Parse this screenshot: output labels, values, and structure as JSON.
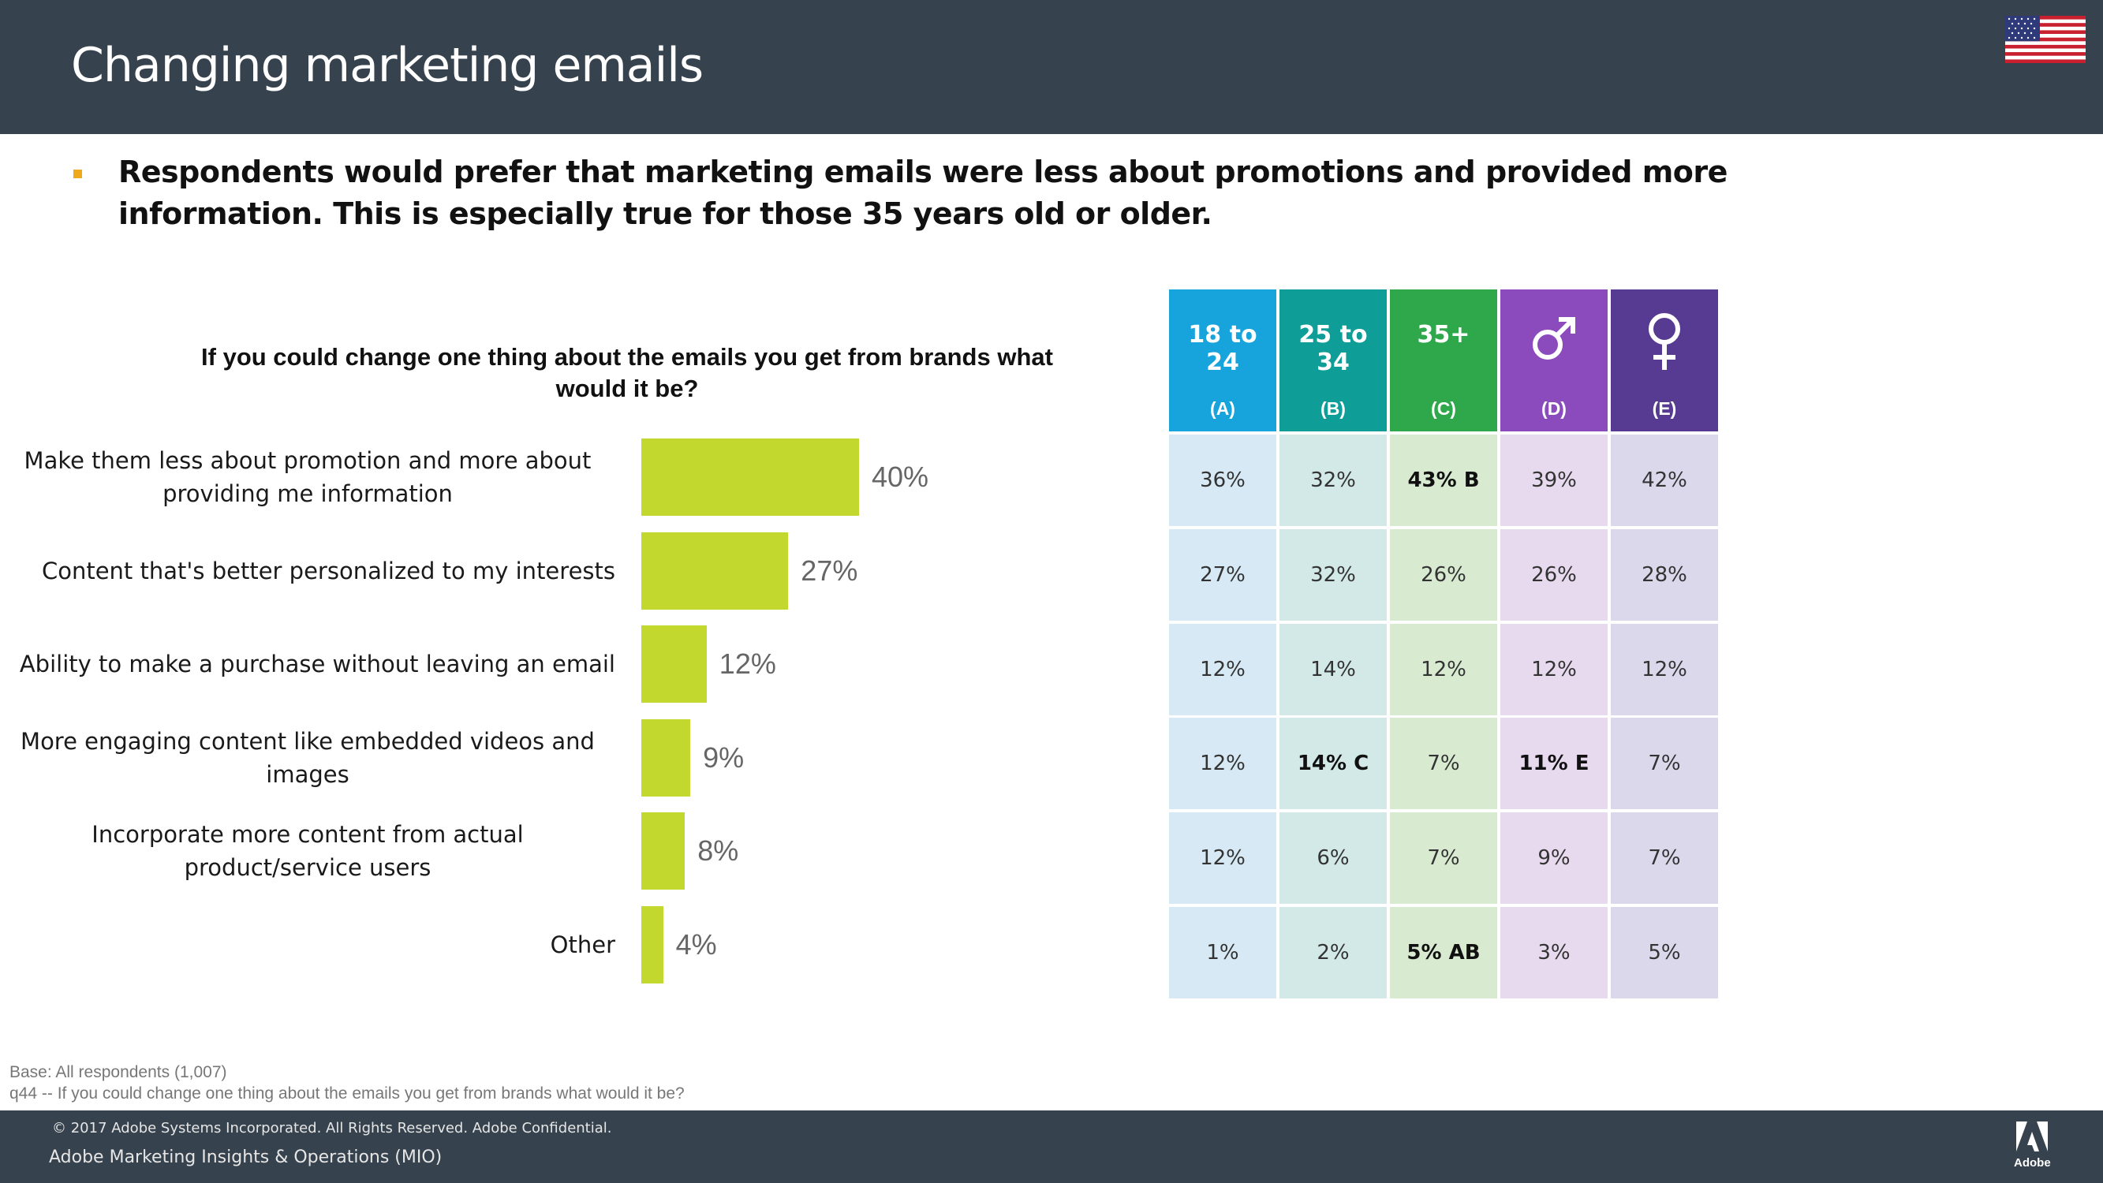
{
  "header": {
    "title": "Changing marketing emails",
    "flag_icon": "us-flag-icon"
  },
  "headline": "Respondents would prefer that marketing emails were less about promotions and provided more information. This is especially true for those 35 years old or older.",
  "question": "If you could change one thing about the emails you get from brands what would it be?",
  "chart_data": {
    "type": "bar",
    "orientation": "horizontal",
    "title": "If you could change one thing about the emails you get from brands what would it be?",
    "categories": [
      "Make them less about promotion and more about providing me information",
      "Content that's better personalized to my interests",
      "Ability to make a purchase without leaving an email",
      "More engaging content like embedded videos and images",
      "Incorporate more content from actual product/service users",
      "Other"
    ],
    "values": [
      40,
      27,
      12,
      9,
      8,
      4
    ],
    "value_labels": [
      "40%",
      "27%",
      "12%",
      "9%",
      "8%",
      "4%"
    ],
    "xlim": [
      0,
      100
    ],
    "color": "#c2d82f"
  },
  "table": {
    "columns": [
      {
        "label": "18 to 24",
        "letter": "(A)",
        "head_color": "#17a3dc",
        "cell_color": "#d6e9f4"
      },
      {
        "label": "25 to 34",
        "letter": "(B)",
        "head_color": "#0e9e97",
        "cell_color": "#d3e9e8"
      },
      {
        "label": "35+",
        "letter": "(C)",
        "head_color": "#2ea84a",
        "cell_color": "#d8ebd1"
      },
      {
        "label": "",
        "icon": "male-symbol-icon",
        "letter": "(D)",
        "head_color": "#8c4bbd",
        "cell_color": "#e7daee"
      },
      {
        "label": "",
        "icon": "female-symbol-icon",
        "letter": "(E)",
        "head_color": "#573a91",
        "cell_color": "#dcd8ec"
      }
    ],
    "rows": [
      [
        {
          "v": "36%"
        },
        {
          "v": "32%"
        },
        {
          "v": "43% B",
          "bold": true
        },
        {
          "v": "39%"
        },
        {
          "v": "42%"
        }
      ],
      [
        {
          "v": "27%"
        },
        {
          "v": "32%"
        },
        {
          "v": "26%"
        },
        {
          "v": "26%"
        },
        {
          "v": "28%"
        }
      ],
      [
        {
          "v": "12%"
        },
        {
          "v": "14%"
        },
        {
          "v": "12%"
        },
        {
          "v": "12%"
        },
        {
          "v": "12%"
        }
      ],
      [
        {
          "v": "12%"
        },
        {
          "v": "14% C",
          "bold": true
        },
        {
          "v": "7%"
        },
        {
          "v": "11% E",
          "bold": true
        },
        {
          "v": "7%"
        }
      ],
      [
        {
          "v": "12%"
        },
        {
          "v": "6%"
        },
        {
          "v": "7%"
        },
        {
          "v": "9%"
        },
        {
          "v": "7%"
        }
      ],
      [
        {
          "v": "1%"
        },
        {
          "v": "2%"
        },
        {
          "v": "5% AB",
          "bold": true
        },
        {
          "v": "3%"
        },
        {
          "v": "5%"
        }
      ]
    ]
  },
  "footnotes": {
    "base": "Base: All respondents (1,007)",
    "question_ref": "q44 -- If you could change one thing about the emails you get from brands what would it be?"
  },
  "footer": {
    "copyright": "© 2017 Adobe Systems Incorporated.  All Rights Reserved.  Adobe Confidential.",
    "org": "Adobe Marketing Insights & Operations (MIO)",
    "logo_text": "Adobe"
  }
}
